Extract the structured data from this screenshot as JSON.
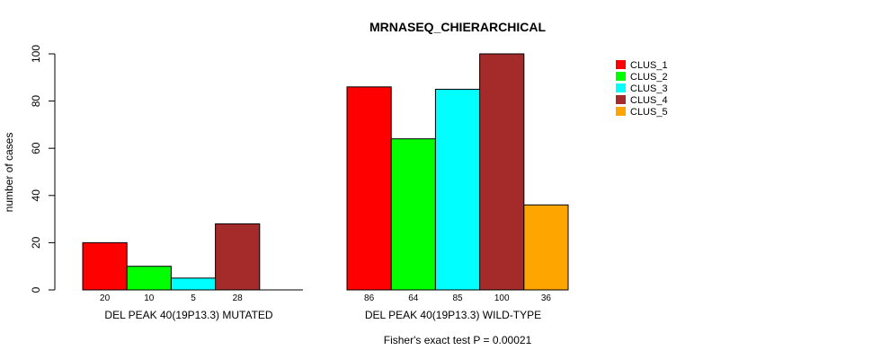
{
  "chart_data": {
    "type": "bar",
    "title": "MRNASEQ_CHIERARCHICAL",
    "ylabel": "number of cases",
    "xlabel": "",
    "ylim": [
      0,
      100
    ],
    "yticks": [
      0,
      20,
      40,
      60,
      80,
      100
    ],
    "groups": [
      "DEL PEAK 40(19P13.3) MUTATED",
      "DEL PEAK 40(19P13.3) WILD-TYPE"
    ],
    "series": [
      {
        "name": "CLUS_1",
        "color": "#ff0000",
        "values": [
          20,
          86
        ]
      },
      {
        "name": "CLUS_2",
        "color": "#00ff00",
        "values": [
          10,
          64
        ]
      },
      {
        "name": "CLUS_3",
        "color": "#00ffff",
        "values": [
          5,
          85
        ]
      },
      {
        "name": "CLUS_4",
        "color": "#a52a2a",
        "values": [
          28,
          100
        ]
      },
      {
        "name": "CLUS_5",
        "color": "#ffa500",
        "values": [
          0,
          36
        ]
      }
    ],
    "bar_labels": [
      [
        "20",
        "10",
        "5",
        "28",
        ""
      ],
      [
        "86",
        "64",
        "85",
        "100",
        "36"
      ]
    ],
    "footnote": "Fisher's exact test P = 0.00021"
  }
}
